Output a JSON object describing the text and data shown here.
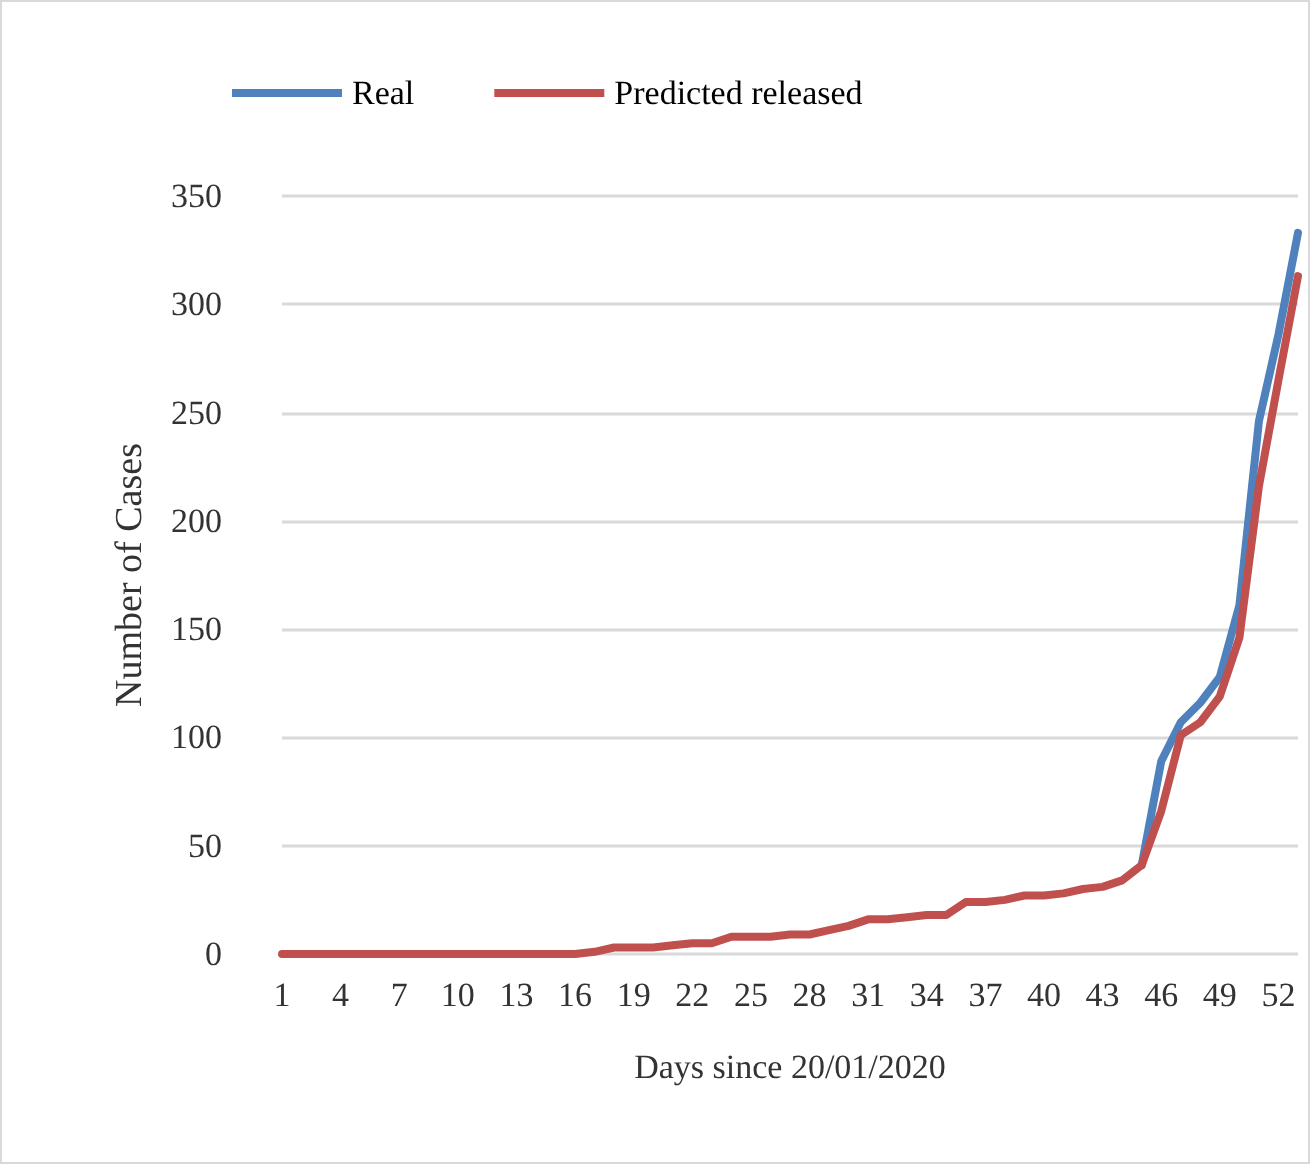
{
  "chart_data": {
    "type": "line",
    "xlabel": "Days since 20/01/2020",
    "ylabel": "Number of Cases",
    "categories": [
      "1",
      null,
      null,
      "4",
      null,
      null,
      "7",
      null,
      null,
      "10",
      null,
      null,
      "13",
      null,
      null,
      "16",
      null,
      null,
      "19",
      null,
      null,
      "22",
      null,
      null,
      "25",
      null,
      null,
      "28",
      null,
      null,
      "31",
      null,
      null,
      "34",
      null,
      null,
      "37",
      null,
      null,
      "40",
      null,
      null,
      "43",
      null,
      null,
      "46",
      null,
      null,
      "49",
      null,
      null,
      "52",
      null
    ],
    "series": [
      {
        "name": "Real",
        "color": "#4f81bd",
        "values": [
          null,
          null,
          null,
          null,
          null,
          null,
          null,
          null,
          null,
          null,
          null,
          null,
          null,
          null,
          null,
          null,
          null,
          null,
          null,
          null,
          null,
          null,
          null,
          null,
          null,
          null,
          null,
          null,
          null,
          null,
          null,
          null,
          null,
          null,
          null,
          null,
          null,
          null,
          null,
          null,
          null,
          null,
          null,
          null,
          41,
          89,
          107,
          116,
          128,
          161,
          246,
          286,
          333
        ]
      },
      {
        "name": "Predicted released",
        "color": "#c0504d",
        "values": [
          0,
          0,
          0,
          0,
          0,
          0,
          0,
          0,
          0,
          0,
          0,
          0,
          0,
          0,
          0,
          0,
          1,
          3,
          3,
          3,
          4,
          5,
          5,
          8,
          8,
          8,
          9,
          9,
          11,
          13,
          16,
          16,
          17,
          18,
          18,
          24,
          24,
          25,
          27,
          27,
          28,
          30,
          31,
          34,
          41,
          66,
          101,
          107,
          119,
          146,
          216,
          265,
          313
        ]
      }
    ],
    "ylim": [
      0,
      350
    ],
    "yticks": [
      0,
      50,
      100,
      150,
      200,
      250,
      300,
      350
    ],
    "grid": "y",
    "legend": "top left",
    "marker": "none",
    "line_style": "solid"
  }
}
